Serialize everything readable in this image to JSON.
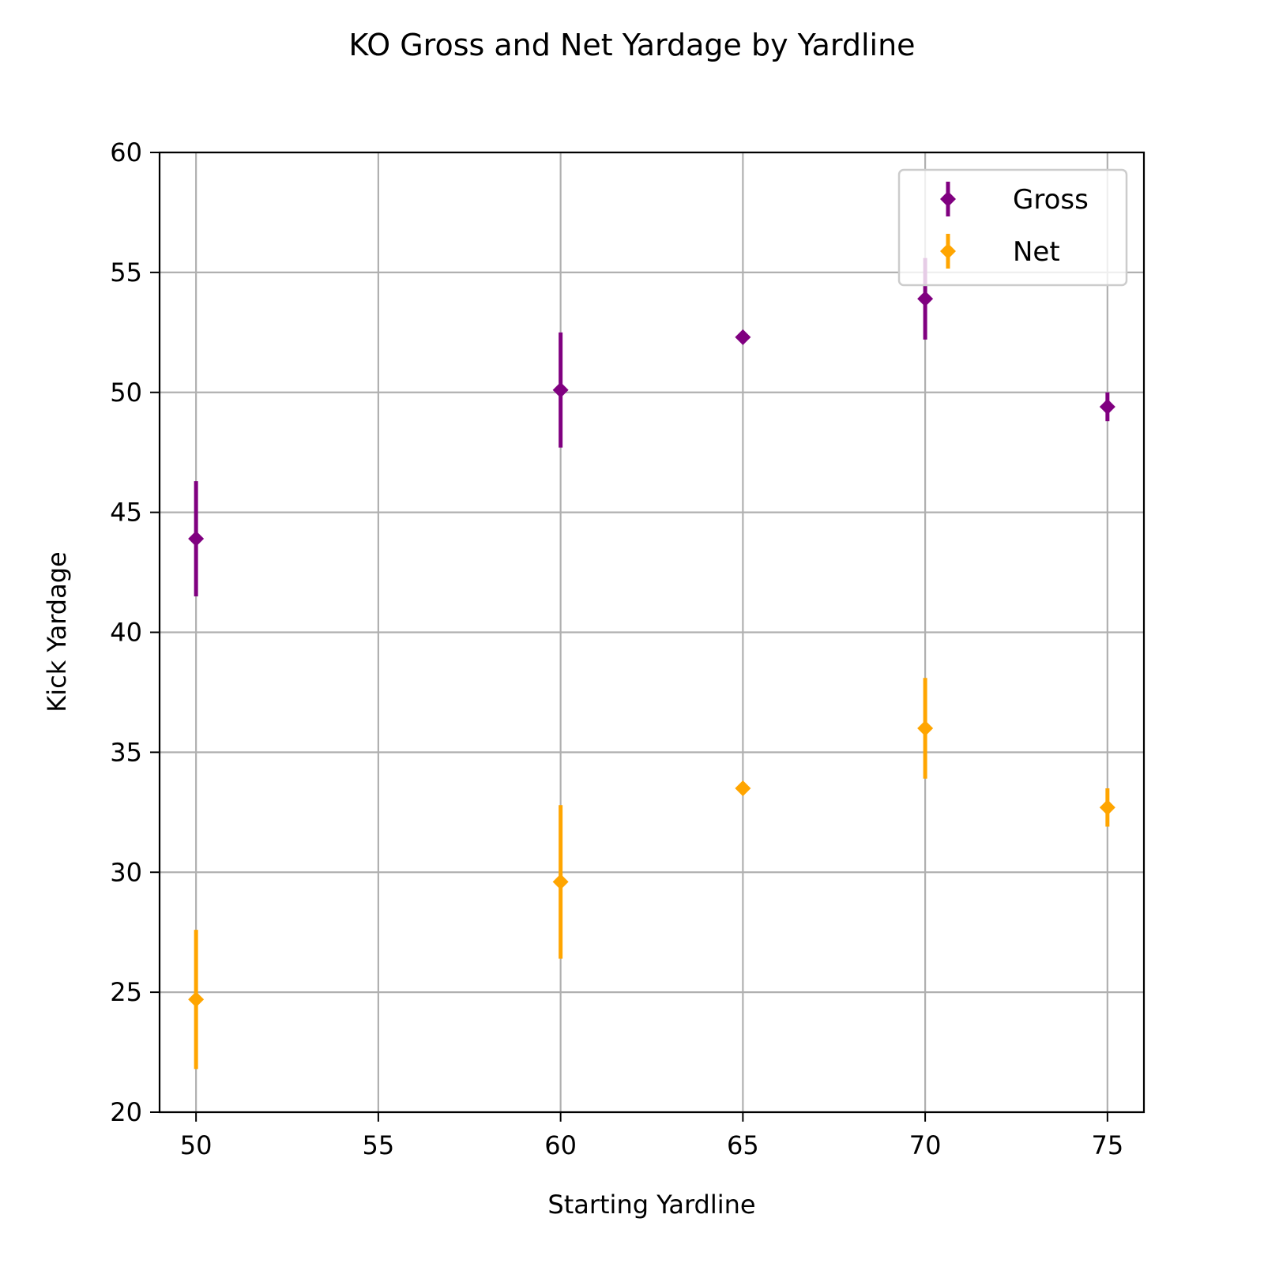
{
  "chart_data": {
    "type": "scatter",
    "title": "KO Gross and Net Yardage by Yardline",
    "xlabel": "Starting Yardline",
    "ylabel": "Kick Yardage",
    "xlim": [
      49,
      76
    ],
    "ylim": [
      20,
      60
    ],
    "x_ticks": [
      50,
      55,
      60,
      65,
      70,
      75
    ],
    "y_ticks": [
      20,
      25,
      30,
      35,
      40,
      45,
      50,
      55,
      60
    ],
    "grid": true,
    "legend_position": "top-right",
    "marker": "diamond",
    "error_bars": "vertical",
    "series": [
      {
        "name": "Gross",
        "color": "#800080",
        "points": [
          {
            "x": 50,
            "y": 43.9,
            "err": 2.4
          },
          {
            "x": 60,
            "y": 50.1,
            "err": 2.4
          },
          {
            "x": 65,
            "y": 52.3,
            "err": 0.0
          },
          {
            "x": 70,
            "y": 53.9,
            "err": 1.7
          },
          {
            "x": 75,
            "y": 49.4,
            "err": 0.6
          }
        ]
      },
      {
        "name": "Net",
        "color": "#FFA500",
        "points": [
          {
            "x": 50,
            "y": 24.7,
            "err": 2.9
          },
          {
            "x": 60,
            "y": 29.6,
            "err": 3.2
          },
          {
            "x": 65,
            "y": 33.5,
            "err": 0.0
          },
          {
            "x": 70,
            "y": 36.0,
            "err": 2.1
          },
          {
            "x": 75,
            "y": 32.7,
            "err": 0.8
          }
        ]
      }
    ]
  }
}
